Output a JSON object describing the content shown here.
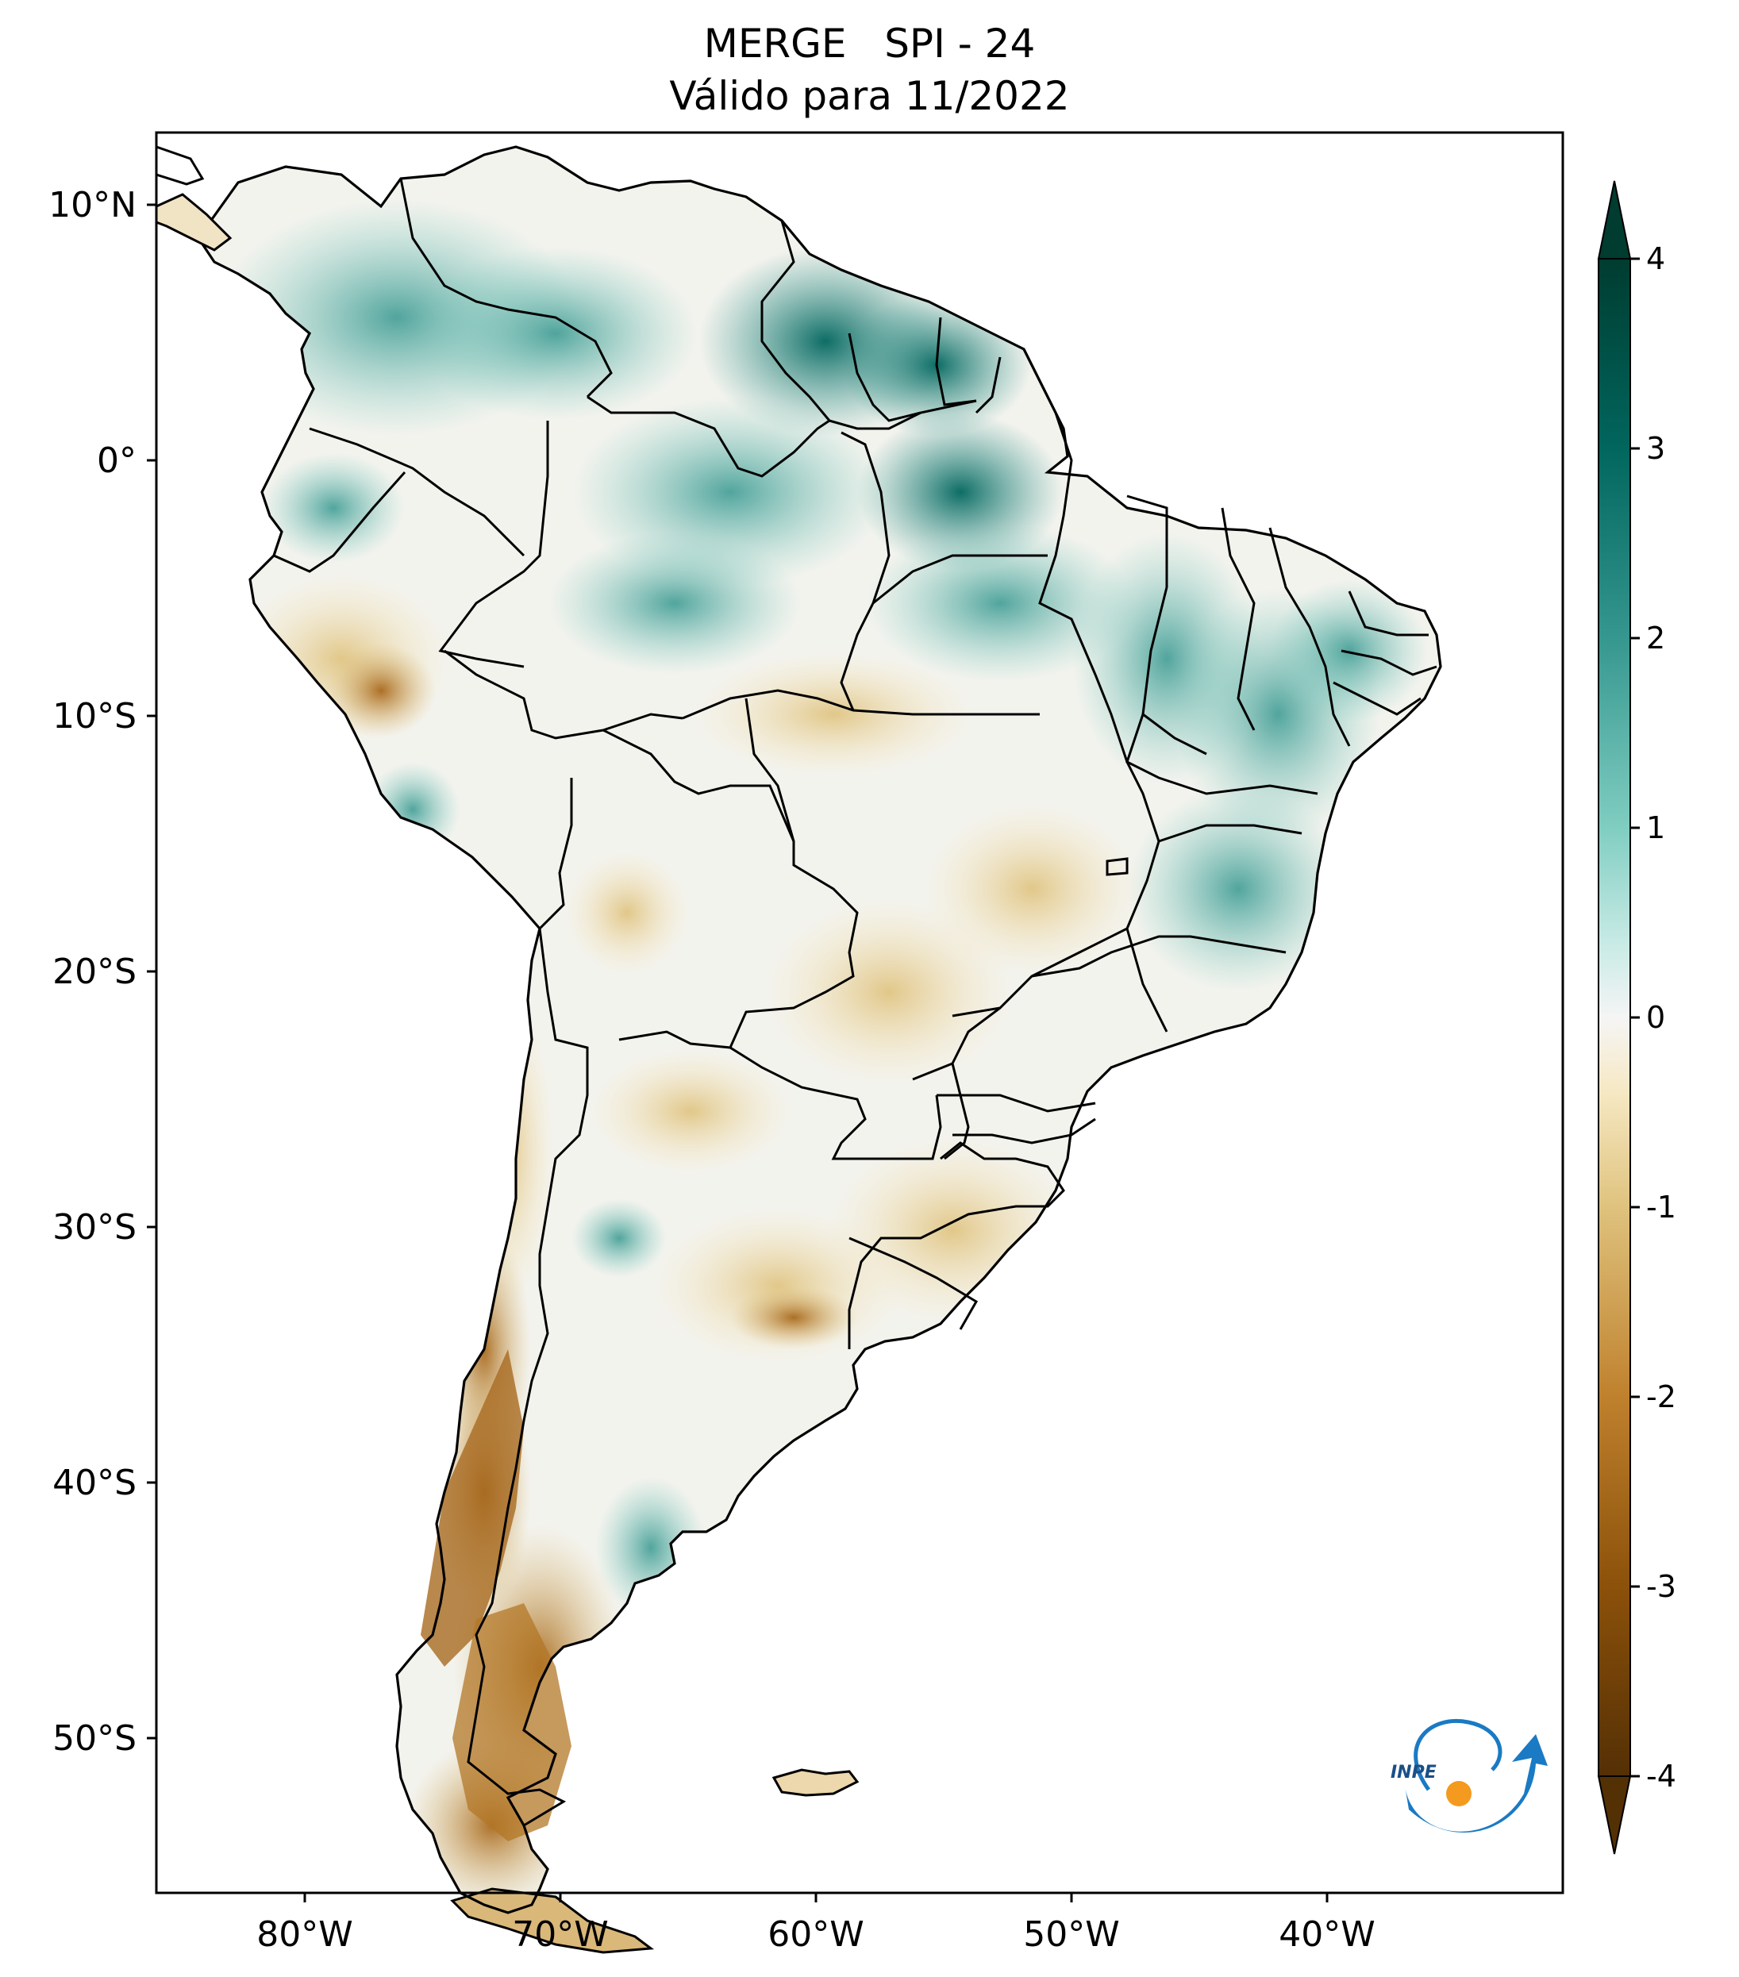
{
  "title": {
    "line1": "MERGE   SPI - 24",
    "line2": "Válido para 11/2022"
  },
  "map": {
    "projection": "plate-carree",
    "lon_range": [
      -85,
      -30
    ],
    "lat_range": [
      -56,
      13
    ],
    "lon_ticks": [
      {
        "value": -80,
        "label": "80°W"
      },
      {
        "value": -70,
        "label": "70°W"
      },
      {
        "value": -60,
        "label": "60°W"
      },
      {
        "value": -50,
        "label": "50°W"
      },
      {
        "value": -40,
        "label": "40°W"
      }
    ],
    "lat_ticks": [
      {
        "value": 10,
        "label": "10°N"
      },
      {
        "value": 0,
        "label": "0°"
      },
      {
        "value": -10,
        "label": "10°S"
      },
      {
        "value": -20,
        "label": "20°S"
      },
      {
        "value": -30,
        "label": "30°S"
      },
      {
        "value": -40,
        "label": "40°S"
      },
      {
        "value": -50,
        "label": "50°S"
      }
    ],
    "borders": "country and Brazilian state boundaries, black"
  },
  "colorbar": {
    "colormap": "BrBG (brown = dry, teal = wet)",
    "range": [
      -4,
      4
    ],
    "extend": "both",
    "ticks": [
      {
        "value": 4,
        "label": "4"
      },
      {
        "value": 3,
        "label": "3"
      },
      {
        "value": 2,
        "label": "2"
      },
      {
        "value": 1,
        "label": "1"
      },
      {
        "value": 0,
        "label": "0"
      },
      {
        "value": -1,
        "label": "-1"
      },
      {
        "value": -2,
        "label": "-2"
      },
      {
        "value": -3,
        "label": "-3"
      },
      {
        "value": -4,
        "label": "-4"
      }
    ],
    "colors": {
      "max": "#003c30",
      "high": "#01665e",
      "wet": "#35978f",
      "light_wet": "#80cdc1",
      "pale_wet": "#c7eae5",
      "neutral": "#f5f5f5",
      "pale_dry": "#f6e8c3",
      "light_dry": "#dfc27d",
      "dry": "#bf812d",
      "very_dry": "#8c510a",
      "min": "#543005"
    }
  },
  "logo": {
    "text": "INPE"
  }
}
